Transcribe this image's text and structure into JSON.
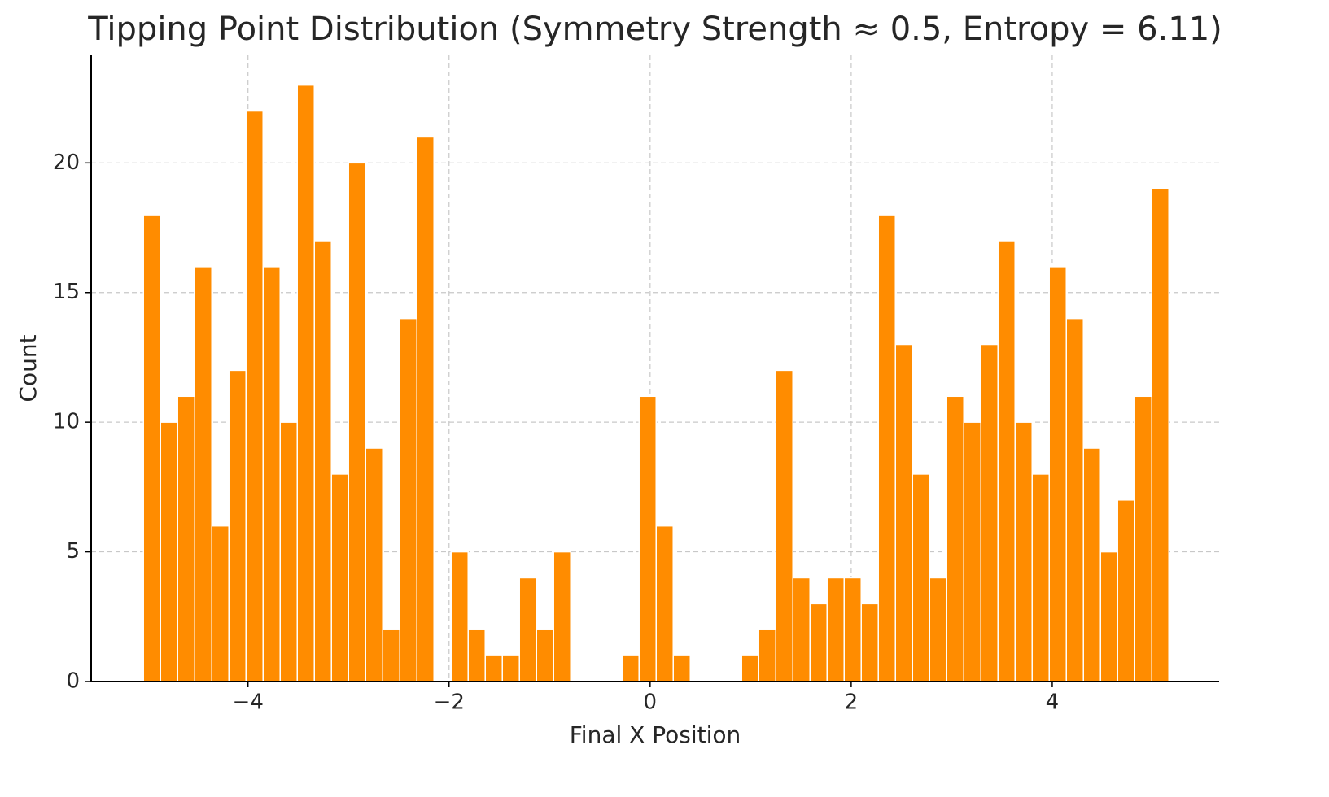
{
  "chart_data": {
    "type": "histogram",
    "title": "Tipping Point Distribution (Symmetry Strength ≈ 0.5, Entropy = 6.11)",
    "x_label": "Final X Position",
    "y_label": "Count",
    "color": "#ff8c00",
    "grid": true,
    "bins": [
      -5.04,
      -4.87,
      -4.7,
      -4.53,
      -4.36,
      -4.19,
      -4.02,
      -3.85,
      -3.68,
      -3.51,
      -3.34,
      -3.17,
      -3.0,
      -2.83,
      -2.66,
      -2.49,
      -2.32,
      -2.15,
      -1.98,
      -1.81,
      -1.64,
      -1.47,
      -1.3,
      -1.13,
      -0.96,
      -0.79,
      -0.62,
      -0.45,
      -0.28,
      -0.11,
      0.06,
      0.23,
      0.4,
      0.57,
      0.74,
      0.91,
      1.08,
      1.25,
      1.42,
      1.59,
      1.76,
      1.93,
      2.1,
      2.27,
      2.44,
      2.61,
      2.78,
      2.95,
      3.12,
      3.29,
      3.46,
      3.63,
      3.8,
      3.97,
      4.14,
      4.31,
      4.48,
      4.65,
      4.82,
      4.99,
      5.16
    ],
    "values": [
      18,
      10,
      11,
      16,
      6,
      12,
      22,
      16,
      10,
      23,
      17,
      8,
      20,
      9,
      2,
      14,
      21,
      0,
      5,
      2,
      1,
      1,
      4,
      2,
      5,
      0,
      0,
      0,
      1,
      11,
      6,
      1,
      0,
      0,
      0,
      1,
      2,
      12,
      4,
      3,
      4,
      4,
      3,
      18,
      13,
      8,
      4,
      11,
      10,
      13,
      17,
      10,
      8,
      16,
      14,
      9,
      5,
      7,
      11,
      19
    ],
    "xlim": [
      -5.56,
      5.66
    ],
    "ylim": [
      0,
      24.15
    ],
    "xticks": [
      {
        "value": -4,
        "label": "−4"
      },
      {
        "value": -2,
        "label": "−2"
      },
      0,
      2,
      4
    ],
    "yticks": [
      0,
      5,
      10,
      15,
      20
    ]
  }
}
